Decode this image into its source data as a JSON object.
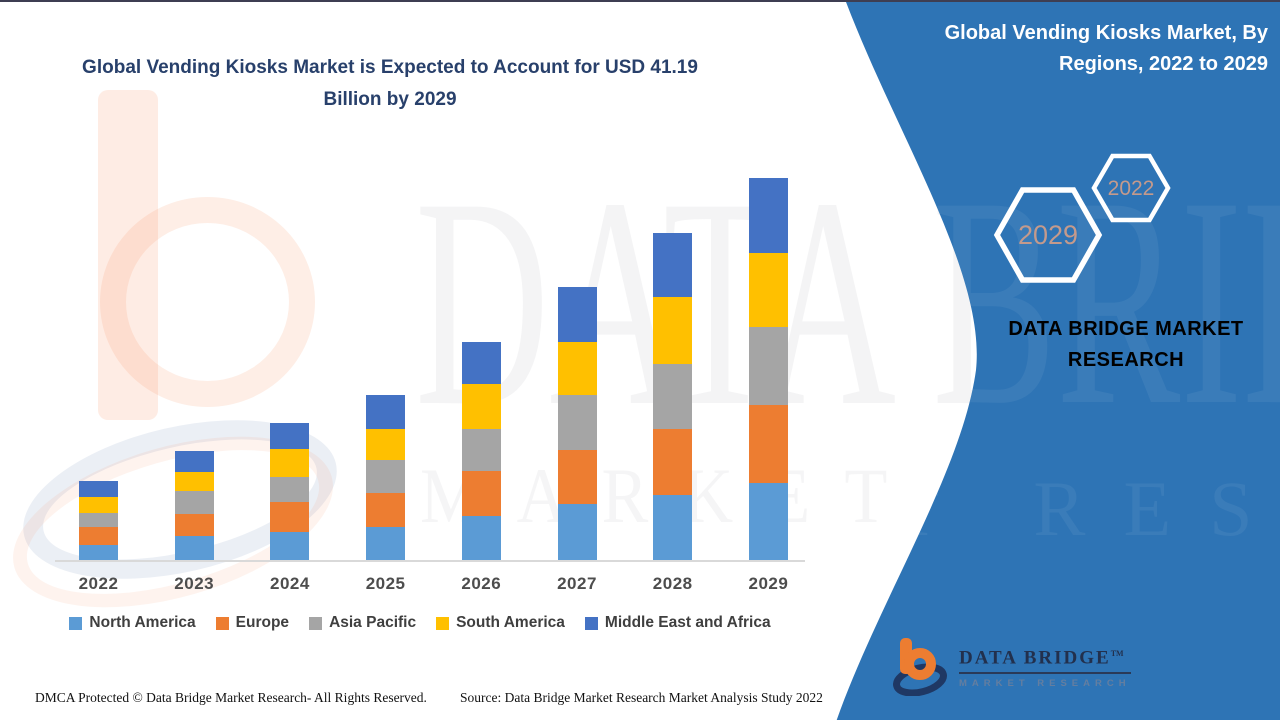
{
  "header": {
    "title_line1": "Global Vending Kiosks Market is Expected to Account for USD 41.19",
    "title_line2": "Billion by 2029"
  },
  "panel": {
    "title": "Global Vending Kiosks Market, By Regions, 2022 to 2029",
    "hexagon_years": [
      "2029",
      "2022"
    ],
    "brand_text": "DATA BRIDGE MARKET RESEARCH",
    "bg_color": "#2E74B5",
    "hexagon_text_color": "#C49A8C",
    "brand_text_color": "#C7DB2E"
  },
  "logo": {
    "name": "DATA BRIDGE",
    "tm": "TM",
    "subtitle": "MARKET RESEARCH",
    "b_color": "#ED7D31",
    "swoosh_color": "#1F3864"
  },
  "watermark": {
    "line1": "DATA BRIDGE",
    "line2": "MARKET RESEARCH"
  },
  "footer": {
    "dmca": "DMCA Protected © Data Bridge Market Research- All Rights Reserved.",
    "source": "Source: Data Bridge Market Research Market Analysis Study 2022"
  },
  "chart_data": {
    "type": "bar",
    "stacked": true,
    "title": "Global Vending Kiosks Market is Expected to Account for USD 41.19 Billion by 2029",
    "unit": "USD Billion",
    "categories": [
      "2022",
      "2023",
      "2024",
      "2025",
      "2026",
      "2027",
      "2028",
      "2029"
    ],
    "series": [
      {
        "name": "North America",
        "color": "#5B9BD5",
        "values": [
          1.6,
          2.6,
          3.0,
          3.6,
          4.8,
          6.0,
          7.0,
          8.3
        ]
      },
      {
        "name": "Europe",
        "color": "#ED7D31",
        "values": [
          2.0,
          2.4,
          3.3,
          3.6,
          4.8,
          5.9,
          7.1,
          8.4
        ]
      },
      {
        "name": "Asia Pacific",
        "color": "#A5A5A5",
        "values": [
          1.5,
          2.4,
          2.7,
          3.6,
          4.5,
          5.9,
          7.1,
          8.4
        ]
      },
      {
        "name": "South America",
        "color": "#FFC000",
        "values": [
          1.7,
          2.1,
          3.0,
          3.3,
          4.9,
          5.7,
          7.2,
          8.0
        ]
      },
      {
        "name": "Middle East and Africa",
        "color": "#4472C4",
        "values": [
          1.7,
          2.3,
          2.8,
          3.7,
          4.5,
          5.9,
          6.9,
          8.1
        ]
      }
    ],
    "totals": [
      8.5,
      11.8,
      14.8,
      17.8,
      23.5,
      29.4,
      35.3,
      41.19
    ],
    "annotation_total_2029": "41.19",
    "ylim": [
      0,
      44
    ],
    "grid": false,
    "legend_position": "bottom"
  }
}
